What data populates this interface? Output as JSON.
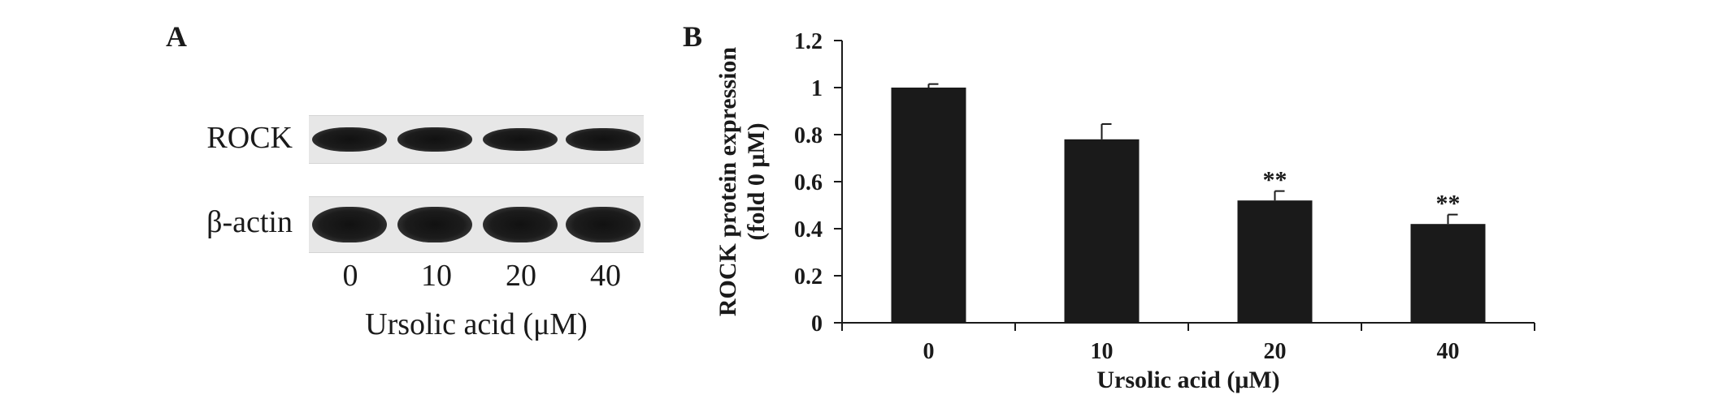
{
  "panel_a": {
    "letter": "A",
    "row_labels": [
      "ROCK",
      "β-actin"
    ],
    "lane_labels": [
      "0",
      "10",
      "20",
      "40"
    ],
    "xlabel": "Ursolic acid (μM)",
    "band_intensity": [
      [
        1.0,
        0.95,
        0.8,
        0.72
      ],
      [
        1.0,
        1.0,
        1.0,
        1.0
      ]
    ]
  },
  "panel_b": {
    "letter": "B"
  },
  "chart_data": {
    "type": "bar",
    "categories": [
      "0",
      "10",
      "20",
      "40"
    ],
    "values": [
      1.0,
      0.78,
      0.52,
      0.42
    ],
    "errors": [
      0.015,
      0.065,
      0.04,
      0.04
    ],
    "annotations": [
      "",
      "",
      "**",
      "**"
    ],
    "xlabel": "Ursolic acid (μM)",
    "ylabel_lines": [
      "ROCK protein expression",
      "(fold 0 μM)"
    ],
    "ylim": [
      0,
      1.2
    ],
    "yticks": [
      "0",
      "0.2",
      "0.4",
      "0.6",
      "0.8",
      "1",
      "1.2"
    ],
    "grid": false,
    "bar_color": "#1a1a1a"
  }
}
